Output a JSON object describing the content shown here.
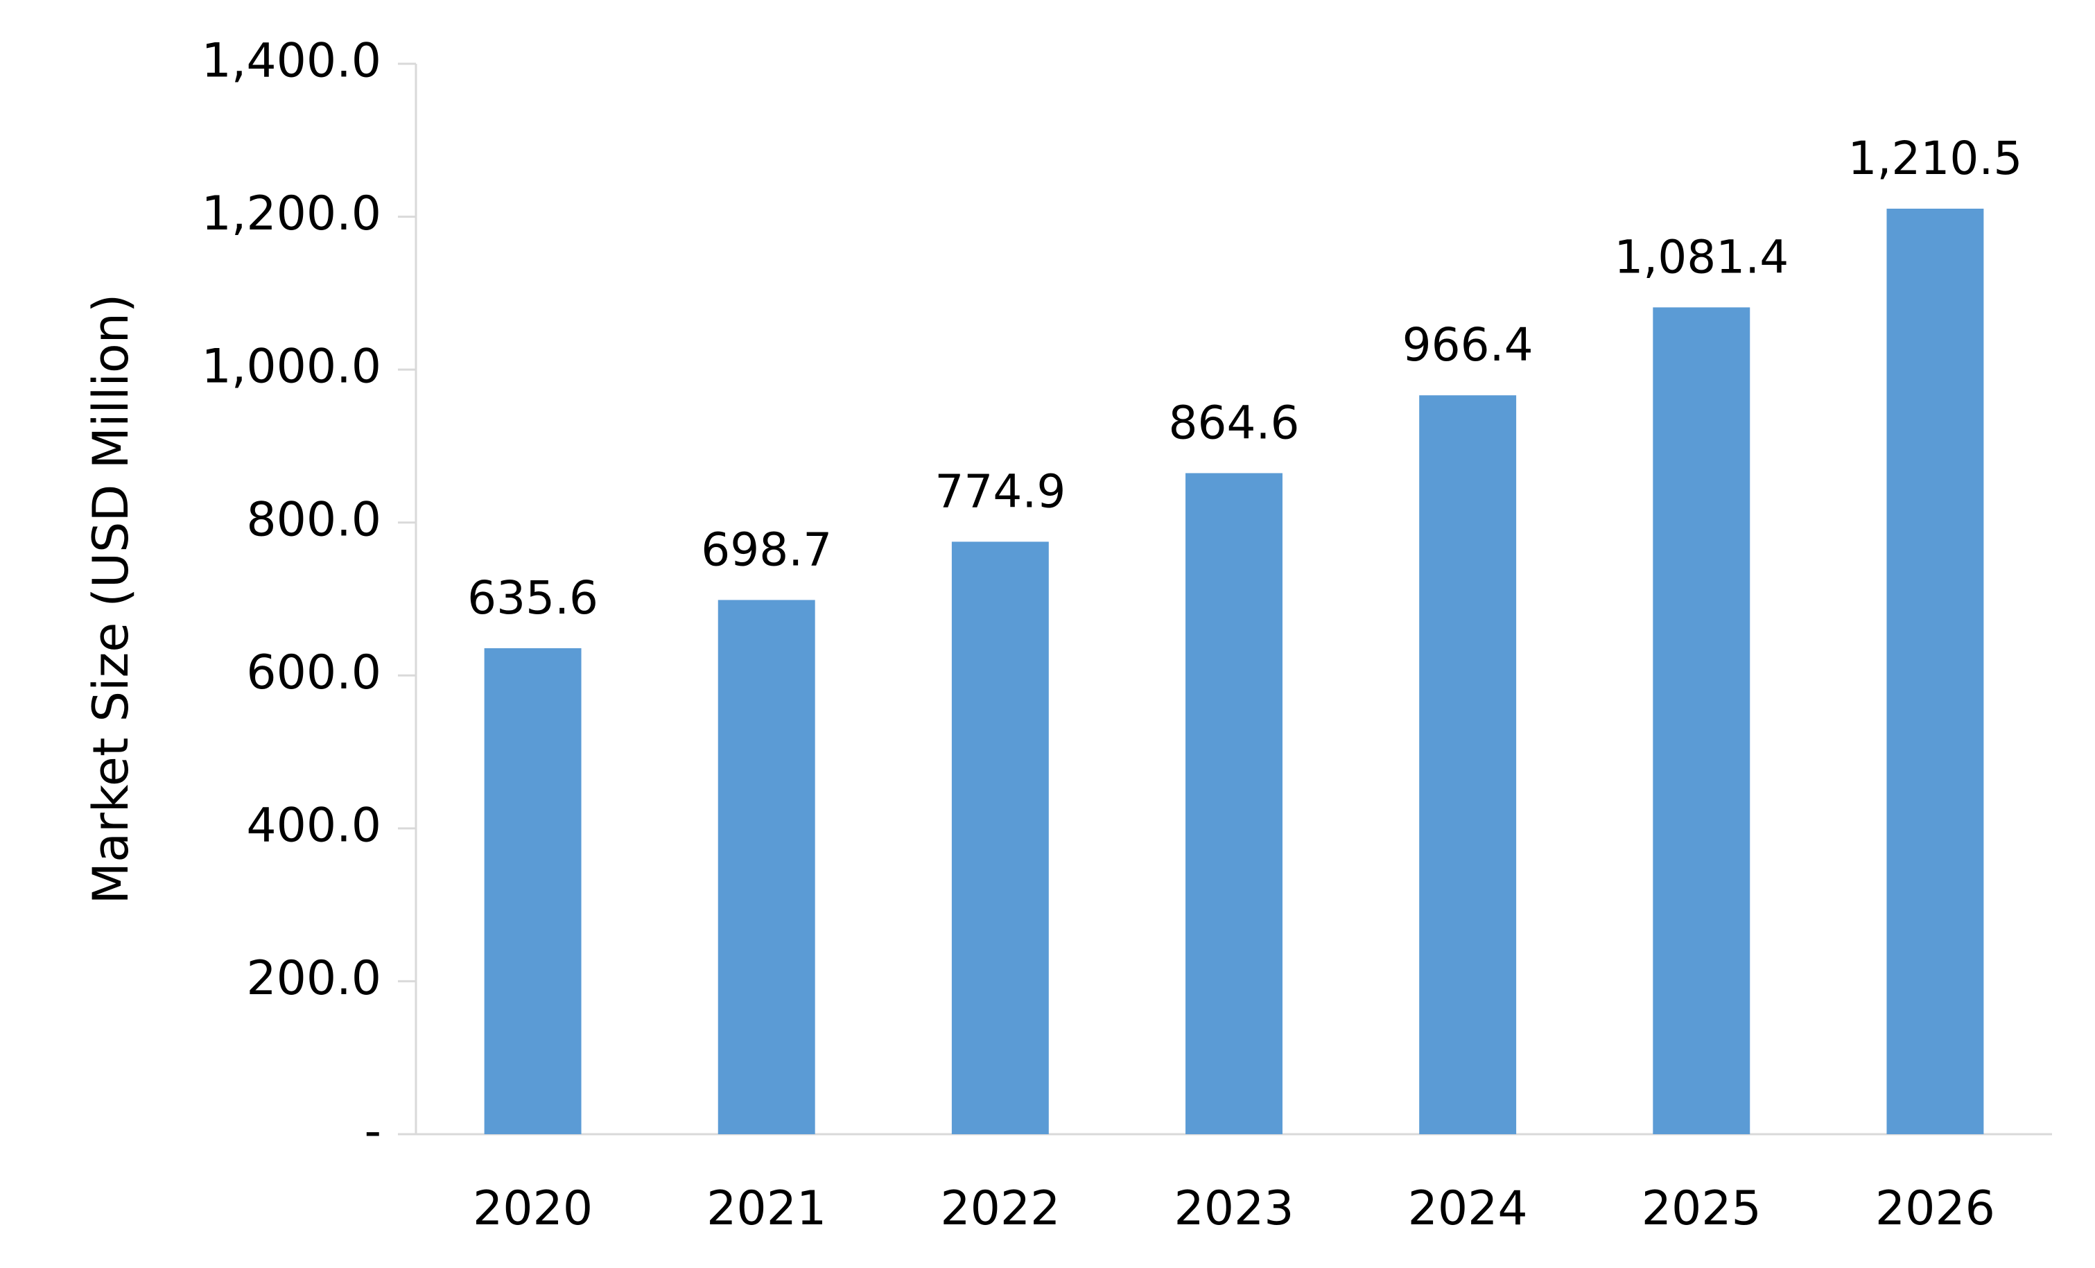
{
  "chart_data": {
    "type": "bar",
    "title": "",
    "xlabel": "",
    "ylabel": "Market Size (USD Million)",
    "categories": [
      "2020",
      "2021",
      "2022",
      "2023",
      "2024",
      "2025",
      "2026"
    ],
    "values": [
      635.6,
      698.7,
      774.9,
      864.6,
      966.4,
      1081.4,
      1210.5
    ],
    "data_labels": [
      "635.6",
      "698.7",
      "774.9",
      "864.6",
      "966.4",
      "1,081.4",
      "1,210.5"
    ],
    "ylim": [
      0,
      1400
    ],
    "y_ticks": [
      0,
      200,
      400,
      600,
      800,
      1000,
      1200,
      1400
    ],
    "y_tick_labels": [
      "-",
      "200.0",
      "400.0",
      "600.0",
      "800.0",
      "1,000.0",
      "1,200.0",
      "1,400.0"
    ],
    "grid": false,
    "legend": "none",
    "bar_color": "#5B9BD5",
    "axis_color": "#D9D9D9"
  }
}
